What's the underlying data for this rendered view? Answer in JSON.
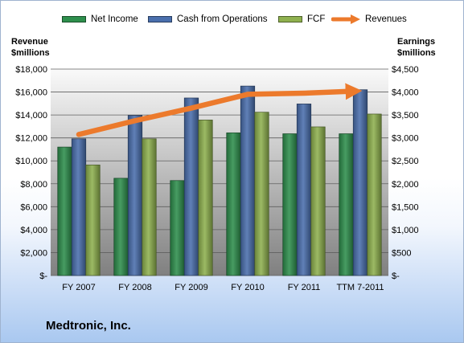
{
  "company": "Medtronic, Inc.",
  "legend": [
    {
      "key": "net_income",
      "label": "Net Income"
    },
    {
      "key": "cash_ops",
      "label": "Cash from Operations"
    },
    {
      "key": "fcf",
      "label": "FCF"
    },
    {
      "key": "revenues",
      "label": "Revenues"
    }
  ],
  "colors": {
    "net_income": "#2e8f4d",
    "cash_ops": "#4a6fad",
    "fcf": "#8fb14f",
    "revenues": "#ec7a2c",
    "plot_bg_top": "#fafafa",
    "plot_bg_bottom": "#808080"
  },
  "axis_titles": {
    "left_line1": "Revenue",
    "left_line2": "$millions",
    "right_line1": "Earnings",
    "right_line2": "$millions"
  },
  "chart_data": {
    "type": "bar",
    "categories": [
      "FY 2007",
      "FY 2008",
      "FY 2009",
      "FY 2010",
      "FY 2011",
      "TTM 7-2011"
    ],
    "series": [
      {
        "name": "Net Income",
        "axis": "right",
        "type": "bar",
        "values": [
          2800,
          2120,
          2070,
          3110,
          3090,
          3090
        ]
      },
      {
        "name": "Cash from Operations",
        "axis": "right",
        "type": "bar",
        "values": [
          2980,
          3490,
          3870,
          4130,
          3740,
          4050
        ]
      },
      {
        "name": "FCF",
        "axis": "right",
        "type": "bar",
        "values": [
          2410,
          2980,
          3390,
          3560,
          3240,
          3520
        ]
      },
      {
        "name": "Revenues",
        "axis": "left",
        "type": "line",
        "values": [
          12300,
          13500,
          14600,
          15800,
          15900,
          16100
        ]
      }
    ],
    "left_axis": {
      "min": 0,
      "max": 18000,
      "step": 2000,
      "tick_labels": [
        "$-",
        "$2,000",
        "$4,000",
        "$6,000",
        "$8,000",
        "$10,000",
        "$12,000",
        "$14,000",
        "$16,000",
        "$18,000"
      ]
    },
    "right_axis": {
      "min": 0,
      "max": 4500,
      "step": 500,
      "tick_labels": [
        "$-",
        "$500",
        "$1,000",
        "$1,500",
        "$2,000",
        "$2,500",
        "$3,000",
        "$3,500",
        "$4,000",
        "$4,500"
      ]
    },
    "legend_position": "top",
    "grid": true
  }
}
